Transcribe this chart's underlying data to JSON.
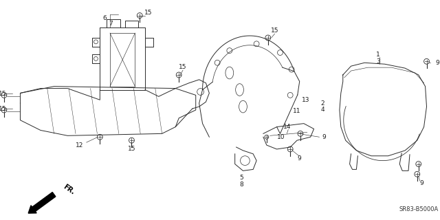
{
  "bg_color": "#ffffff",
  "diagram_code": "SR83-B5000A",
  "fr_label": "FR.",
  "line_color": "#2a2a2a",
  "text_color": "#1a1a1a",
  "label_font": 6.5
}
